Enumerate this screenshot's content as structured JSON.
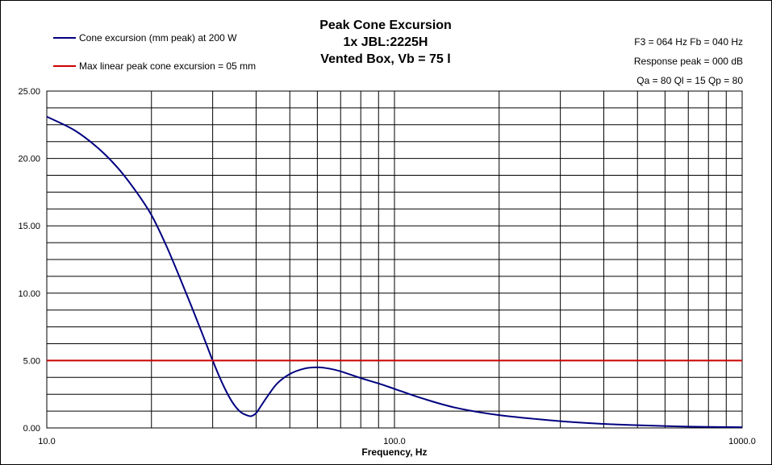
{
  "chart_data": {
    "type": "line",
    "title": [
      "Peak Cone Excursion",
      "1x JBL:2225H",
      "Vented Box, Vb = 75 l"
    ],
    "xlabel": "Frequency, Hz",
    "ylabel": "",
    "x_scale": "log",
    "xlim": [
      10,
      1000
    ],
    "ylim": [
      0,
      25
    ],
    "x_tick_labels": [
      "10.0",
      "100.0",
      "1000.0"
    ],
    "y_tick_labels": [
      "0.00",
      "5.00",
      "10.00",
      "15.00",
      "20.00",
      "25.00"
    ],
    "grid": true,
    "legend_position": "top-left",
    "info_lines": [
      "F3 = 064 Hz  Fb = 040 Hz",
      "Response peak = 000 dB",
      "Qa = 80  Ql = 15  Qp = 80"
    ],
    "series": [
      {
        "name": "Cone excursion (mm peak) at 200 W",
        "color": "#000080",
        "x": [
          10,
          12,
          14,
          16,
          18,
          20,
          22,
          24,
          26,
          28,
          30,
          32,
          34,
          36,
          38,
          39,
          40,
          41,
          43,
          46,
          50,
          55,
          60,
          65,
          70,
          80,
          90,
          100,
          120,
          150,
          200,
          300,
          400,
          500,
          700,
          1000
        ],
        "y": [
          23.1,
          22.1,
          20.8,
          19.3,
          17.6,
          15.8,
          13.6,
          11.3,
          9.1,
          7.0,
          5.0,
          3.3,
          2.0,
          1.2,
          0.9,
          0.9,
          1.1,
          1.5,
          2.3,
          3.3,
          4.0,
          4.4,
          4.5,
          4.4,
          4.2,
          3.7,
          3.3,
          2.9,
          2.2,
          1.5,
          0.95,
          0.5,
          0.3,
          0.2,
          0.1,
          0.05
        ]
      },
      {
        "name": "Max linear peak cone excursion = 05 mm",
        "color": "#cc0000",
        "x": [
          10,
          1000
        ],
        "y": [
          5,
          5
        ]
      }
    ]
  }
}
